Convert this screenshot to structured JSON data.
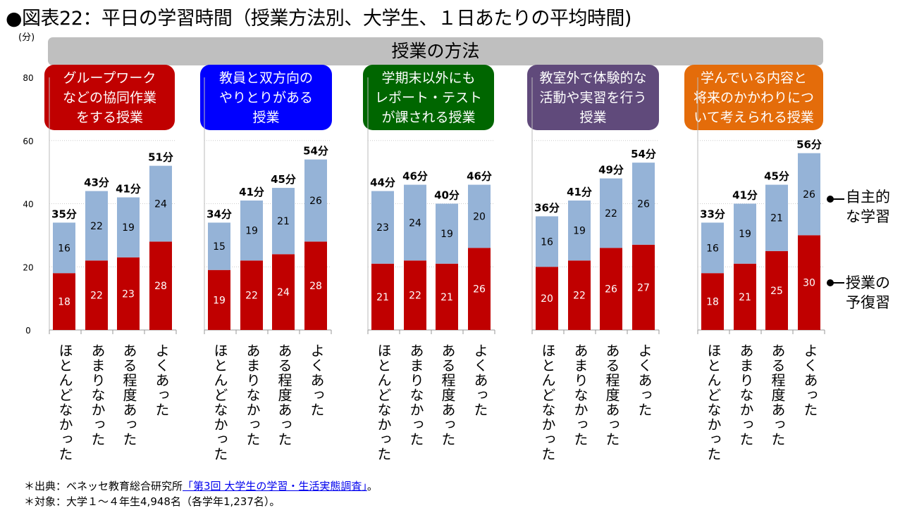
{
  "title": "●図表22：平日の学習時間（授業方法別、大学生、１日あたりの平均時間)",
  "footer": {
    "source_prefix": "＊出典：ベネッセ教育総合研究所",
    "source_link": "「第3回 大学生の学習・生活実態調査」",
    "source_suffix": "。",
    "target": "＊対象：大学１～４年生4,948名（各学年1,237名）。"
  },
  "chart_data": {
    "type": "bar",
    "stacked": true,
    "header": "授業の方法",
    "ylabel": "(分)",
    "ylim": [
      0,
      80
    ],
    "yticks": [
      0,
      20,
      40,
      60,
      80
    ],
    "grid": true,
    "categories": [
      "ほとんどなかった",
      "あまりなかった",
      "ある程度あった",
      "よくあった"
    ],
    "total_suffix": "分",
    "legend": {
      "independent": "自主的\nな学習",
      "prep_review": "授業の\n予復習"
    },
    "colors": {
      "prep_review": "#c00000",
      "independent": "#95b3d7"
    },
    "groups": [
      {
        "name": "グループワークなどの協同作業をする授業",
        "lines": [
          "グループワーク",
          "などの協同作業",
          "をする授業"
        ],
        "color": "#c00000",
        "prep_review": [
          18,
          22,
          23,
          28
        ],
        "independent": [
          16,
          22,
          19,
          24
        ],
        "totals": [
          35,
          43,
          41,
          51
        ]
      },
      {
        "name": "教員と双方向のやりとりがある授業",
        "lines": [
          "教員と双方向の",
          "やりとりがある",
          "授業"
        ],
        "color": "#0000ff",
        "prep_review": [
          19,
          22,
          24,
          28
        ],
        "independent": [
          15,
          19,
          21,
          26
        ],
        "totals": [
          34,
          41,
          45,
          54
        ]
      },
      {
        "name": "学期末以外にもレポート・テストが課される授業",
        "lines": [
          "学期末以外にも",
          "レポート・テスト",
          "が課される授業"
        ],
        "color": "#006600",
        "prep_review": [
          21,
          22,
          21,
          26
        ],
        "independent": [
          23,
          24,
          19,
          20
        ],
        "totals": [
          44,
          46,
          40,
          46
        ]
      },
      {
        "name": "教室外で体験的な活動や実習を行う授業",
        "lines": [
          "教室外で体験的な",
          "活動や実習を行う",
          "授業"
        ],
        "color": "#604a7b",
        "prep_review": [
          20,
          22,
          26,
          27
        ],
        "independent": [
          16,
          19,
          22,
          26
        ],
        "totals": [
          36,
          41,
          49,
          54
        ]
      },
      {
        "name": "学んでいる内容と将来のかかわりについて考えられる授業",
        "lines": [
          "学んでいる内容と",
          "将来のかかわりにつ",
          "いて考えられる授業"
        ],
        "color": "#e46c0a",
        "prep_review": [
          18,
          21,
          25,
          30
        ],
        "independent": [
          16,
          19,
          21,
          26
        ],
        "totals": [
          33,
          41,
          45,
          56
        ]
      }
    ]
  }
}
